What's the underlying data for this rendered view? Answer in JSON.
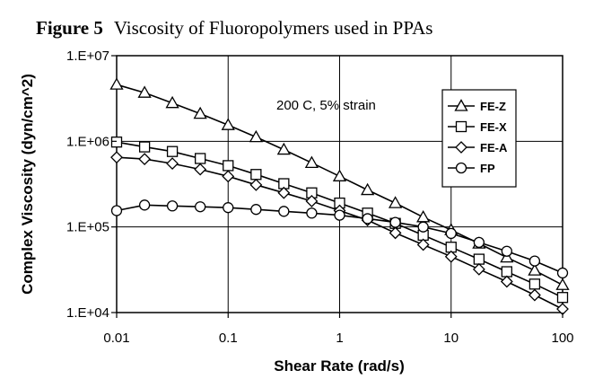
{
  "chart_data": {
    "type": "line",
    "title_prefix": "Figure 5",
    "title": "Viscosity of Fluoropolymers used in PPAs",
    "xlabel": "Shear Rate (rad/s)",
    "ylabel": "Complex Viscosity (dyn/cm^2)",
    "x_scale": "log",
    "y_scale": "log",
    "xlim": [
      0.01,
      100
    ],
    "ylim": [
      10000,
      10000000
    ],
    "x_tick_values": [
      0.01,
      0.1,
      1,
      10,
      100
    ],
    "x_tick_labels": [
      "0.01",
      "0.1",
      "1",
      "10",
      "100"
    ],
    "y_tick_values": [
      10000,
      100000,
      1000000,
      10000000
    ],
    "y_tick_labels": [
      "1.E+04",
      "1.E+05",
      "1.E+06",
      "1.E+07"
    ],
    "grid": true,
    "legend_position": "top-right",
    "annotation": "200 C, 5% strain",
    "series": [
      {
        "name": "FE-Z",
        "marker": "triangle",
        "x": [
          0.01,
          0.0178,
          0.0316,
          0.0562,
          0.1,
          0.178,
          0.316,
          0.562,
          1,
          1.78,
          3.16,
          5.62,
          10,
          17.8,
          31.6,
          56.2,
          100
        ],
        "y": [
          4600000,
          3700000,
          2800000,
          2100000,
          1550000,
          1120000,
          800000,
          560000,
          390000,
          270000,
          190000,
          130000,
          92000,
          64000,
          44000,
          31000,
          21000
        ]
      },
      {
        "name": "FE-X",
        "marker": "square",
        "x": [
          0.01,
          0.0178,
          0.0316,
          0.0562,
          0.1,
          0.178,
          0.316,
          0.562,
          1,
          1.78,
          3.16,
          5.62,
          10,
          17.8,
          31.6,
          56.2,
          100
        ],
        "y": [
          980000,
          860000,
          760000,
          630000,
          520000,
          410000,
          320000,
          250000,
          190000,
          145000,
          110000,
          80000,
          58000,
          42000,
          30000,
          21500,
          15000
        ]
      },
      {
        "name": "FE-A",
        "marker": "diamond",
        "x": [
          0.01,
          0.0178,
          0.0316,
          0.0562,
          0.1,
          0.178,
          0.316,
          0.562,
          1,
          1.78,
          3.16,
          5.62,
          10,
          17.8,
          31.6,
          56.2,
          100
        ],
        "y": [
          650000,
          620000,
          550000,
          470000,
          390000,
          310000,
          250000,
          200000,
          155000,
          120000,
          85000,
          62000,
          45000,
          32000,
          23000,
          16000,
          11000
        ]
      },
      {
        "name": "FP",
        "marker": "circle",
        "x": [
          0.01,
          0.0178,
          0.0316,
          0.0562,
          0.1,
          0.178,
          0.316,
          0.562,
          1,
          1.78,
          3.16,
          5.62,
          10,
          17.8,
          31.6,
          56.2,
          100
        ],
        "y": [
          155000,
          180000,
          176000,
          172000,
          168000,
          160000,
          152000,
          145000,
          137000,
          125000,
          113000,
          100000,
          84000,
          66000,
          52000,
          40000,
          29000
        ]
      }
    ]
  }
}
